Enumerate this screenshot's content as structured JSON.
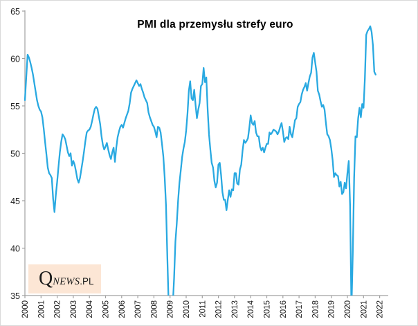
{
  "title": "PMI dla przemysłu strefy euro",
  "watermark": {
    "q": "Q",
    "news": "NEWS",
    "pl": ".PL"
  },
  "colors": {
    "line": "#29a9e1",
    "axis": "#a0a0a0",
    "tick_text": "#1f1f1f",
    "title_text": "#000000",
    "watermark_bg": "#fce6d5",
    "watermark_text": "#1a1a1a"
  },
  "chart_data": {
    "type": "line",
    "title": "PMI dla przemysłu strefy euro",
    "xlabel": "",
    "ylabel": "",
    "frequency": "monthly",
    "x_start": {
      "year": 2000,
      "month": 1
    },
    "x_end": {
      "year": 2021,
      "month": 10
    },
    "ylim": [
      35,
      65
    ],
    "y_ticks": [
      35,
      40,
      45,
      50,
      55,
      60,
      65
    ],
    "x_tick_labels": [
      "2000",
      "2001",
      "2002",
      "2003",
      "2004",
      "2005",
      "2006",
      "2007",
      "2008",
      "2009",
      "2010",
      "2011",
      "2012",
      "2013",
      "2014",
      "2015",
      "2016",
      "2017",
      "2018",
      "2019",
      "2020",
      "2021",
      "2022"
    ],
    "grid": false,
    "legend": null,
    "clip_below_axis": true,
    "series": [
      {
        "name": "PMI dla przemysłu strefy euro",
        "values": [
          55.6,
          58.0,
          60.4,
          60.1,
          59.6,
          59.0,
          58.3,
          57.4,
          56.5,
          55.6,
          55.0,
          54.6,
          54.4,
          53.8,
          52.6,
          51.2,
          49.9,
          48.5,
          47.9,
          47.7,
          47.4,
          45.2,
          43.8,
          45.6,
          47.0,
          48.6,
          50.1,
          51.2,
          52.0,
          51.8,
          51.5,
          50.8,
          50.1,
          49.7,
          50.0,
          48.7,
          49.2,
          48.8,
          48.1,
          47.3,
          46.9,
          47.4,
          48.3,
          49.2,
          50.2,
          51.3,
          52.2,
          52.4,
          52.5,
          52.8,
          53.4,
          54.1,
          54.7,
          54.9,
          54.7,
          53.9,
          53.1,
          51.8,
          50.9,
          50.4,
          50.7,
          51.1,
          50.4,
          49.8,
          49.4,
          50.1,
          50.6,
          49.1,
          50.6,
          51.7,
          52.3,
          52.8,
          53.0,
          52.7,
          53.2,
          53.7,
          54.1,
          54.5,
          55.3,
          56.4,
          56.8,
          57.1,
          57.4,
          57.7,
          57.4,
          57.1,
          57.3,
          56.8,
          56.4,
          55.9,
          55.6,
          55.3,
          54.3,
          53.8,
          53.4,
          53.0,
          52.8,
          52.3,
          51.7,
          52.8,
          52.7,
          52.2,
          51.0,
          49.7,
          47.5,
          44.5,
          39.0,
          33.9,
          34.4,
          33.5,
          33.9,
          36.8,
          40.7,
          42.6,
          45.0,
          46.9,
          48.2,
          49.6,
          50.5,
          51.2,
          52.4,
          54.2,
          56.6,
          57.6,
          55.8,
          55.6,
          56.7,
          55.1,
          53.7,
          54.6,
          55.3,
          57.1,
          57.3,
          59.0,
          57.5,
          58.0,
          54.6,
          52.0,
          50.4,
          49.0,
          48.5,
          47.1,
          46.4,
          46.9,
          48.8,
          49.0,
          47.7,
          45.9,
          45.1,
          45.1,
          44.0,
          45.1,
          46.1,
          45.4,
          46.2,
          46.1,
          47.9,
          47.9,
          46.8,
          46.7,
          48.3,
          48.8,
          50.3,
          51.4,
          51.1,
          51.3,
          51.6,
          52.7,
          54.0,
          53.2,
          53.0,
          53.4,
          52.2,
          51.8,
          51.8,
          50.7,
          50.3,
          50.6,
          50.1,
          50.6,
          51.0,
          51.0,
          52.2,
          52.0,
          52.2,
          52.5,
          52.4,
          52.3,
          52.0,
          52.3,
          52.8,
          53.2,
          52.3,
          51.2,
          51.6,
          51.7,
          51.5,
          52.8,
          52.0,
          51.7,
          52.6,
          53.5,
          53.7,
          54.9,
          55.2,
          55.4,
          56.2,
          56.7,
          57.0,
          57.4,
          56.6,
          57.4,
          58.1,
          58.5,
          60.1,
          60.6,
          59.6,
          58.6,
          56.6,
          56.2,
          55.5,
          54.9,
          55.1,
          54.6,
          53.2,
          52.0,
          51.8,
          51.4,
          50.5,
          49.3,
          47.5,
          47.9,
          47.7,
          47.6,
          46.5,
          47.0,
          45.7,
          45.9,
          46.9,
          46.3,
          47.9,
          49.2,
          44.5,
          33.4,
          39.4,
          47.4,
          51.8,
          51.7,
          53.7,
          54.8,
          53.8,
          55.2,
          54.8,
          57.9,
          62.5,
          62.9,
          63.1,
          63.4,
          62.8,
          61.4,
          58.6,
          58.3
        ]
      }
    ]
  }
}
